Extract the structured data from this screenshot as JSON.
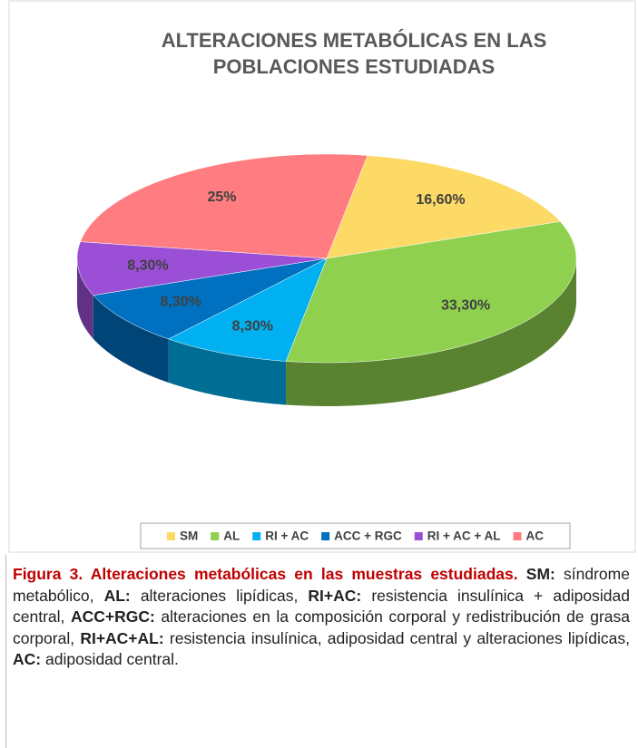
{
  "chart_data": {
    "type": "pie3d",
    "title": "ALTERACIONES METABÓLICAS EN LAS POBLACIONES ESTUDIADAS",
    "categories": [
      "SM",
      "AL",
      "RI + AC",
      "ACC + RGC",
      "RI + AC + AL",
      "AC"
    ],
    "values": [
      16.6,
      33.3,
      8.3,
      8.3,
      8.3,
      25
    ],
    "value_labels": [
      "16,60%",
      "33,30%",
      "8,30%",
      "8,30%",
      "8,30%",
      "25%"
    ],
    "colors": [
      "#fdd966",
      "#8fd14f",
      "#00b0f0",
      "#0070c0",
      "#9b4fd6",
      "#ff7c80"
    ],
    "legend": "bottom"
  },
  "caption": {
    "title": "Figura 3. Alteraciones metabólicas en las muestras estudiadas.",
    "items": [
      {
        "term": "SM:",
        "desc": "síndrome metabólico,"
      },
      {
        "term": "AL:",
        "desc": "alteraciones lipídicas,"
      },
      {
        "term": "RI+AC:",
        "desc": "resistencia insulínica + adiposidad central,"
      },
      {
        "term": "ACC+RGC:",
        "desc": "alteraciones en la composición corporal y redistribución de grasa corporal,"
      },
      {
        "term": "RI+AC+AL:",
        "desc": "resistencia insulínica, adiposidad central y alteraciones lipídicas,"
      },
      {
        "term": "AC:",
        "desc": "adiposidad central."
      }
    ]
  }
}
